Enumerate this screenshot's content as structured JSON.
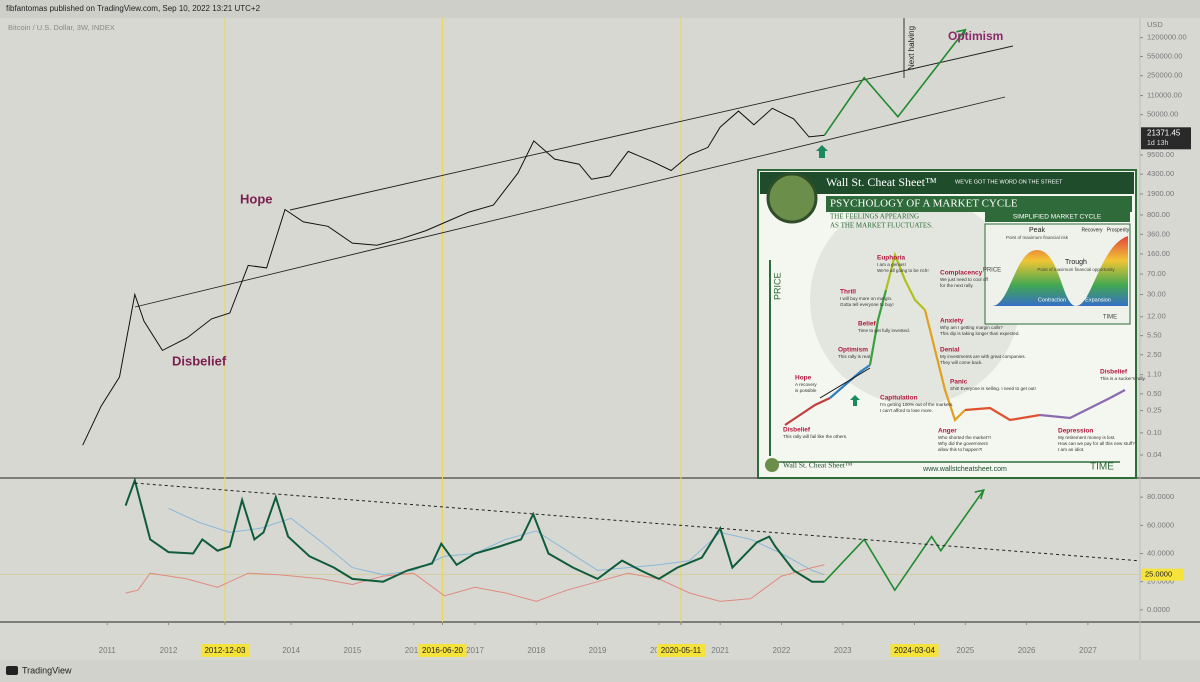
{
  "header": {
    "text": "fibfantomas published on TradingView.com, Sep 10, 2022 13:21 UTC+2"
  },
  "footer": {
    "brand": "TradingView"
  },
  "chart_data": [
    {
      "type": "line",
      "title": "Bitcoin / U.S. Dollar, 3W, INDEX",
      "axis_unit": "USD",
      "log_scale": true,
      "xlim": [
        2009.25,
        2027.85
      ],
      "ylim": [
        0.0155,
        2700000
      ],
      "yticks": [
        {
          "value": 1200000,
          "label": "1200000.00"
        },
        {
          "value": 550000,
          "label": "550000.00"
        },
        {
          "value": 250000,
          "label": "250000.00"
        },
        {
          "value": 110000,
          "label": "110000.00"
        },
        {
          "value": 50000,
          "label": "50000.00"
        },
        {
          "value": 9500,
          "label": "9500.00"
        },
        {
          "value": 4300,
          "label": "4300.00"
        },
        {
          "value": 1900,
          "label": "1900.00"
        },
        {
          "value": 800,
          "label": "800.00"
        },
        {
          "value": 360,
          "label": "360.00"
        },
        {
          "value": 160,
          "label": "160.00"
        },
        {
          "value": 70,
          "label": "70.00"
        },
        {
          "value": 30,
          "label": "30.00"
        },
        {
          "value": 12,
          "label": "12.00"
        },
        {
          "value": 5.5,
          "label": "5.50"
        },
        {
          "value": 2.5,
          "label": "2.50"
        },
        {
          "value": 1.1,
          "label": "1.10"
        },
        {
          "value": 0.5,
          "label": "0.50"
        },
        {
          "value": 0.25,
          "label": "0.25"
        },
        {
          "value": 0.1,
          "label": "0.10"
        },
        {
          "value": 0.04,
          "label": "0.04"
        }
      ],
      "series": [
        {
          "color": "#111111",
          "x": [
            2010.6,
            2010.9,
            2011.2,
            2011.45,
            2011.6,
            2011.9,
            2012.3,
            2012.7,
            2013.0,
            2013.3,
            2013.6,
            2013.9,
            2014.2,
            2014.6,
            2015.0,
            2015.4,
            2015.8,
            2016.2,
            2016.6,
            2016.9,
            2017.3,
            2017.7,
            2017.96,
            2018.3,
            2018.7,
            2018.9,
            2019.2,
            2019.5,
            2019.9,
            2020.2,
            2020.5,
            2020.8,
            2021.0,
            2021.3,
            2021.55,
            2021.85,
            2022.2,
            2022.45,
            2022.7
          ],
          "values": [
            0.06,
            0.3,
            1,
            30,
            10,
            3,
            5,
            11,
            14,
            100,
            90,
            1000,
            600,
            500,
            250,
            230,
            300,
            420,
            650,
            900,
            1200,
            4500,
            17000,
            8000,
            6500,
            3500,
            4000,
            11000,
            7200,
            5000,
            9500,
            13000,
            30000,
            58000,
            33000,
            65000,
            42000,
            20000,
            21371.45
          ]
        },
        {
          "color": "#1f8a2e",
          "x": [
            2022.7,
            2023.35,
            2023.9,
            2025.0
          ],
          "values": [
            21371.45,
            230000,
            46000,
            1660000
          ]
        }
      ],
      "last_price": {
        "value": 21371.45,
        "label": "21371.45"
      },
      "countdown": "1d 13h",
      "annotations": [
        "Hope",
        "Disbelief",
        "Optimism",
        "Next halving"
      ]
    },
    {
      "type": "line",
      "xlim": [
        2009.25,
        2027.85
      ],
      "ylim": [
        -8.6,
        93.6
      ],
      "yticks": [
        {
          "value": 80,
          "label": "80.0000"
        },
        {
          "value": 60,
          "label": "60.0000"
        },
        {
          "value": 40,
          "label": "40.0000"
        },
        {
          "value": 20,
          "label": "20.0000"
        },
        {
          "value": 0,
          "label": "0.0000"
        }
      ],
      "level": {
        "value": 25,
        "label": "25.0000"
      },
      "xticks": [
        2011,
        2012,
        {
          "value": 2012.92,
          "label": "2012-12-03"
        },
        2014,
        2015,
        2016,
        {
          "value": 2016.47,
          "label": "2016-06-20"
        },
        2017,
        2018,
        2019,
        2020,
        {
          "value": 2020.36,
          "label": "2020-05-11"
        },
        2021,
        2022,
        2023,
        {
          "value": 2024.17,
          "label": "2024-03-04"
        },
        2025,
        2026,
        2027
      ],
      "series": [
        {
          "color": "#8ab8d8",
          "x": [
            2012.0,
            2012.5,
            2013.0,
            2013.5,
            2014.0,
            2014.5,
            2015.0,
            2015.5,
            2016.0,
            2016.5,
            2017.0,
            2017.5,
            2018.0,
            2018.5,
            2019.0,
            2019.5,
            2020.0,
            2020.5,
            2021.0,
            2021.5,
            2022.0,
            2022.5,
            2022.7
          ],
          "values": [
            72,
            62,
            55,
            58,
            65,
            48,
            30,
            25,
            28,
            38,
            40,
            50,
            56,
            42,
            28,
            30,
            32,
            35,
            55,
            50,
            40,
            28,
            25
          ]
        },
        {
          "color": "#e08a80",
          "x": [
            2011.3,
            2011.5,
            2011.7,
            2012.3,
            2012.8,
            2013.3,
            2013.8,
            2014.5,
            2015.0,
            2015.5,
            2016.0,
            2016.5,
            2017.0,
            2017.5,
            2018.0,
            2018.5,
            2019.0,
            2019.5,
            2020.0,
            2020.5,
            2021.0,
            2021.5,
            2022.0,
            2022.5,
            2022.7
          ],
          "values": [
            12,
            14,
            26,
            22,
            16,
            26,
            25,
            22,
            18,
            24,
            26,
            10,
            16,
            12,
            6,
            14,
            20,
            26,
            22,
            12,
            6,
            8,
            24,
            30,
            32
          ]
        },
        {
          "color": "#0f5c3a",
          "x": [
            2011.3,
            2011.45,
            2011.7,
            2012.0,
            2012.4,
            2012.55,
            2012.8,
            2013.0,
            2013.2,
            2013.4,
            2013.55,
            2013.75,
            2013.95,
            2014.3,
            2014.7,
            2015.0,
            2015.5,
            2015.9,
            2016.3,
            2016.45,
            2016.7,
            2017.0,
            2017.4,
            2017.75,
            2017.95,
            2018.2,
            2018.6,
            2019.0,
            2019.4,
            2019.7,
            2020.0,
            2020.3,
            2020.7,
            2021.0,
            2021.2,
            2021.6,
            2021.8,
            2021.9,
            2022.2,
            2022.5,
            2022.7
          ],
          "values": [
            74,
            92,
            50,
            41,
            40,
            50,
            42,
            45,
            78,
            50,
            55,
            80,
            52,
            38,
            30,
            22,
            20,
            28,
            33,
            47,
            32,
            40,
            45,
            50,
            68,
            40,
            30,
            22,
            35,
            28,
            22,
            30,
            37,
            58,
            30,
            48,
            52,
            45,
            28,
            20,
            20
          ]
        },
        {
          "color": "#1f8a2e",
          "x": [
            2022.7,
            2023.35,
            2023.85,
            2024.45,
            2024.6,
            2025.3
          ],
          "values": [
            20,
            50,
            14,
            52,
            42,
            85
          ]
        },
        {
          "color": "#222222",
          "dashed": true,
          "x": [
            2011.45,
            2027.8
          ],
          "values": [
            90,
            35
          ]
        }
      ]
    }
  ],
  "infographic": {
    "brand": "Wall St. Cheat Sheet™",
    "tagline": "WE'VE GOT THE WORD ON THE STREET",
    "title": "PSYCHOLOGY OF A MARKET CYCLE",
    "subtitle": [
      "THE FEELINGS APPEARING",
      "AS THE MARKET FLUCTUATES."
    ],
    "box_title": "SIMPLIFIED MARKET CYCLE",
    "box_labels": [
      "Peak",
      "Point of maximum financial risk",
      "Trough",
      "Point of maximum financial opportunity",
      "Recovery",
      "Prosperity",
      "Contraction",
      "Expansion",
      "PRICE",
      "TIME"
    ],
    "axis_price": "PRICE",
    "axis_time": "TIME",
    "stages": [
      {
        "name": "Disbelief",
        "quote": [
          "This rally will fail like the others."
        ]
      },
      {
        "name": "Hope",
        "quote": [
          "A recovery",
          "is possible"
        ]
      },
      {
        "name": "Optimism",
        "quote": [
          "This rally is real."
        ]
      },
      {
        "name": "Belief",
        "quote": [
          "Time to get fully invested."
        ]
      },
      {
        "name": "Thrill",
        "quote": [
          "I will buy more on margin.",
          "Gotta tell everyone to buy!"
        ]
      },
      {
        "name": "Euphoria",
        "quote": [
          "I am a genius!",
          "We're all going to be rich!"
        ]
      },
      {
        "name": "Complacency",
        "quote": [
          "We just need to cool off",
          "for the next rally."
        ]
      },
      {
        "name": "Anxiety",
        "quote": [
          "Why am I getting margin calls?",
          "This dip is taking longer than expected."
        ]
      },
      {
        "name": "Denial",
        "quote": [
          "My investments are with great companies.",
          "They will come back."
        ]
      },
      {
        "name": "Panic",
        "quote": [
          "Shit! Everyone is selling. I need to get out!"
        ]
      },
      {
        "name": "Capitulation",
        "quote": [
          "I'm getting 100% out of the markets.",
          "I can't afford to lose more."
        ]
      },
      {
        "name": "Anger",
        "quote": [
          "Who shorted the market?!",
          "Why did the government",
          "allow this to happen?!"
        ]
      },
      {
        "name": "Depression",
        "quote": [
          "My retirement money is lost.",
          "How can we pay for all this new stuff?",
          "I am an idiot."
        ]
      },
      {
        "name": "Disbelief",
        "quote": [
          "This is a sucker's rally."
        ]
      }
    ],
    "website": "www.wallstcheatsheet.com"
  }
}
